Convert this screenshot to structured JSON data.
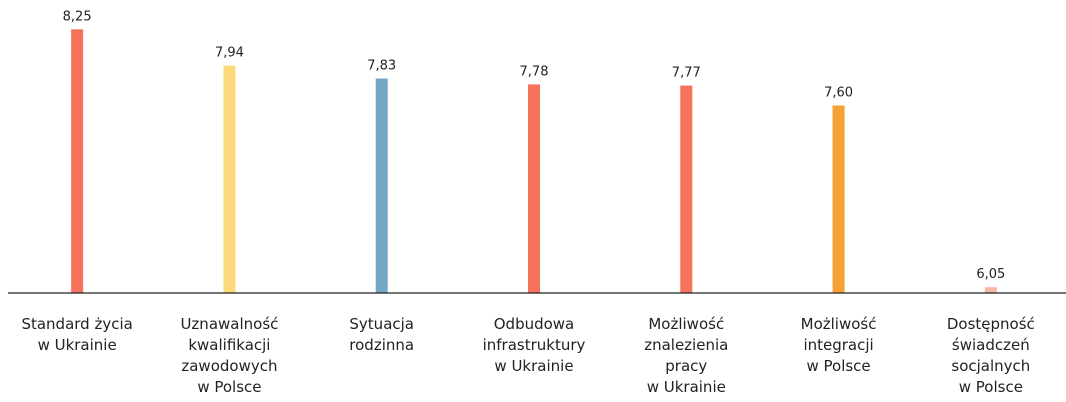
{
  "chart_data": {
    "type": "bar",
    "categories": [
      "Standard życia\nw Ukrainie",
      "Uznawalność\nkwalifikacji\nzawodowych\nw Polsce",
      "Sytuacja\nrodzinna",
      "Odbudowa\ninfrastruktury\nw Ukrainie",
      "Możliwość\nznalezienia\npracy\nw Ukrainie",
      "Możliwość\nintegracji\nw Polsce",
      "Dostępność\nświadczeń\nsocjalnych\nw Polsce"
    ],
    "values": [
      8.25,
      7.94,
      7.83,
      7.78,
      7.77,
      7.6,
      6.05
    ],
    "value_labels": [
      "8,25",
      "7,94",
      "7,83",
      "7,78",
      "7,77",
      "7,60",
      "6,05"
    ],
    "colors": [
      "#f4735a",
      "#fcd97a",
      "#72a7c6",
      "#f4735a",
      "#f4735a",
      "#f7a035",
      "#f7b7a5"
    ],
    "ylim": [
      6,
      8.5
    ]
  }
}
